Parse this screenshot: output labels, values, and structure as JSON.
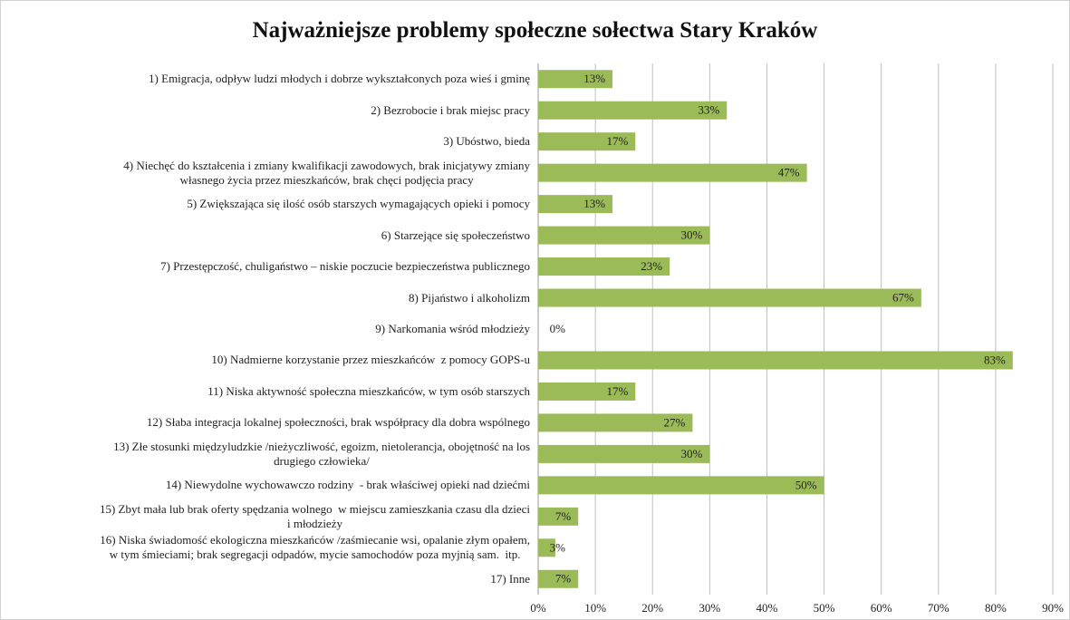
{
  "chart_data": {
    "type": "hbar",
    "title": "Najważniejsze problemy społeczne sołectwa Stary Kraków",
    "categories": [
      "1) Emigracja, odpływ ludzi młodych i dobrze wykształconych poza wieś i gminę",
      "2) Bezrobocie i brak miejsc pracy",
      "3) Ubóstwo, bieda",
      "4) Niechęć do kształcenia i zmiany kwalifikacji zawodowych, brak inicjatywy zmiany\nwłasnego życia przez mieszkańców, brak chęci podjęcia pracy",
      "5) Zwiększająca się ilość osób starszych wymagających opieki i pomocy",
      "6) Starzejące się społeczeństwo",
      "7) Przestępczość, chuligaństwo – niskie poczucie bezpieczeństwa publicznego",
      "8) Pijaństwo i alkoholizm",
      "9) Narkomania wśród młodzieży",
      "10) Nadmierne korzystanie przez mieszkańców  z pomocy GOPS-u",
      "11) Niska aktywność społeczna mieszkańców, w tym osób starszych",
      "12) Słaba integracja lokalnej społeczności, brak współpracy dla dobra wspólnego",
      "13) Złe stosunki międzyludzkie /nieżyczliwość, egoizm, nietolerancja, obojętność na los\ndrugiego człowieka/",
      "14) Niewydolne wychowawczo rodziny  - brak właściwej opieki nad dziećmi",
      "15) Zbyt mała lub brak oferty spędzania wolnego  w miejscu zamieszkania czasu dla dzieci\ni młodzieży",
      "16) Niska świadomość ekologiczna mieszkańców /zaśmiecanie wsi, opalanie złym opałem,\nw tym śmieciami; brak segregacji odpadów, mycie samochodów poza myjnią sam.  itp.",
      "17) Inne"
    ],
    "values": [
      13,
      33,
      17,
      47,
      13,
      30,
      23,
      67,
      0,
      83,
      17,
      27,
      30,
      50,
      7,
      3,
      7
    ],
    "value_labels": [
      "13%",
      "33%",
      "17%",
      "47%",
      "13%",
      "30%",
      "23%",
      "67%",
      "0%",
      "83%",
      "17%",
      "27%",
      "30%",
      "50%",
      "7%",
      "3%",
      "7%"
    ],
    "color": "#9bbb59",
    "xlim": [
      0,
      90
    ],
    "xticks": [
      {
        "value": 0,
        "label": "0%"
      },
      {
        "value": 10,
        "label": "10%"
      },
      {
        "value": 20,
        "label": "20%"
      },
      {
        "value": 30,
        "label": "30%"
      },
      {
        "value": 40,
        "label": "40%"
      },
      {
        "value": 50,
        "label": "50%"
      },
      {
        "value": 60,
        "label": "60%"
      },
      {
        "value": 70,
        "label": "70%"
      },
      {
        "value": 80,
        "label": "80%"
      },
      {
        "value": 90,
        "label": "90%"
      }
    ],
    "grid": true
  }
}
